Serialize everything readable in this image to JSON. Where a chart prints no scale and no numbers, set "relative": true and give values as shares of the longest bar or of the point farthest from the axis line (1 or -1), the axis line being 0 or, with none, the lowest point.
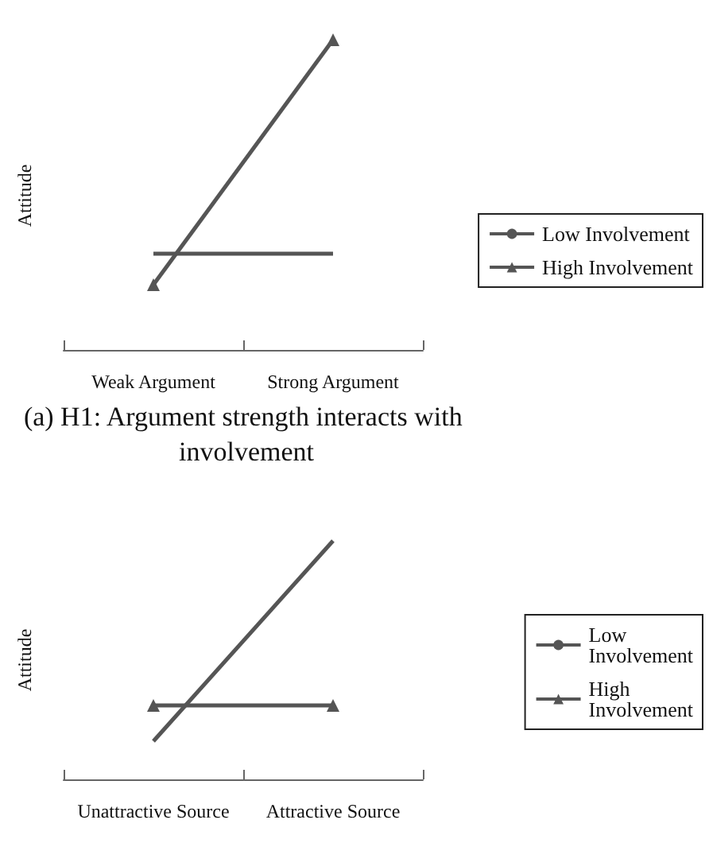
{
  "chart_data": [
    {
      "type": "line",
      "title": "(a) H1: Argument strength interacts with involvement",
      "ylabel": "Attitude",
      "categories": [
        "Weak Argument",
        "Strong Argument"
      ],
      "relative": true,
      "legend": "right",
      "series": [
        {
          "name": "Low Involvement",
          "color": "#555555",
          "marker": "none",
          "values": [
            0.31,
            0.31
          ]
        },
        {
          "name": "High Involvement",
          "color": "#555555",
          "marker": "triangle",
          "values": [
            0.21,
            1
          ]
        }
      ]
    },
    {
      "type": "line",
      "ylabel": "Attitude",
      "categories": [
        "Unattractive Source",
        "Attractive Source"
      ],
      "relative": true,
      "legend": "right",
      "series": [
        {
          "name": "Low Involvement",
          "color": "#555555",
          "marker": "none",
          "values": [
            0.16,
            1
          ]
        },
        {
          "name": "High Involvement",
          "color": "#555555",
          "marker": "triangle",
          "values": [
            0.31,
            0.31
          ]
        }
      ]
    }
  ]
}
